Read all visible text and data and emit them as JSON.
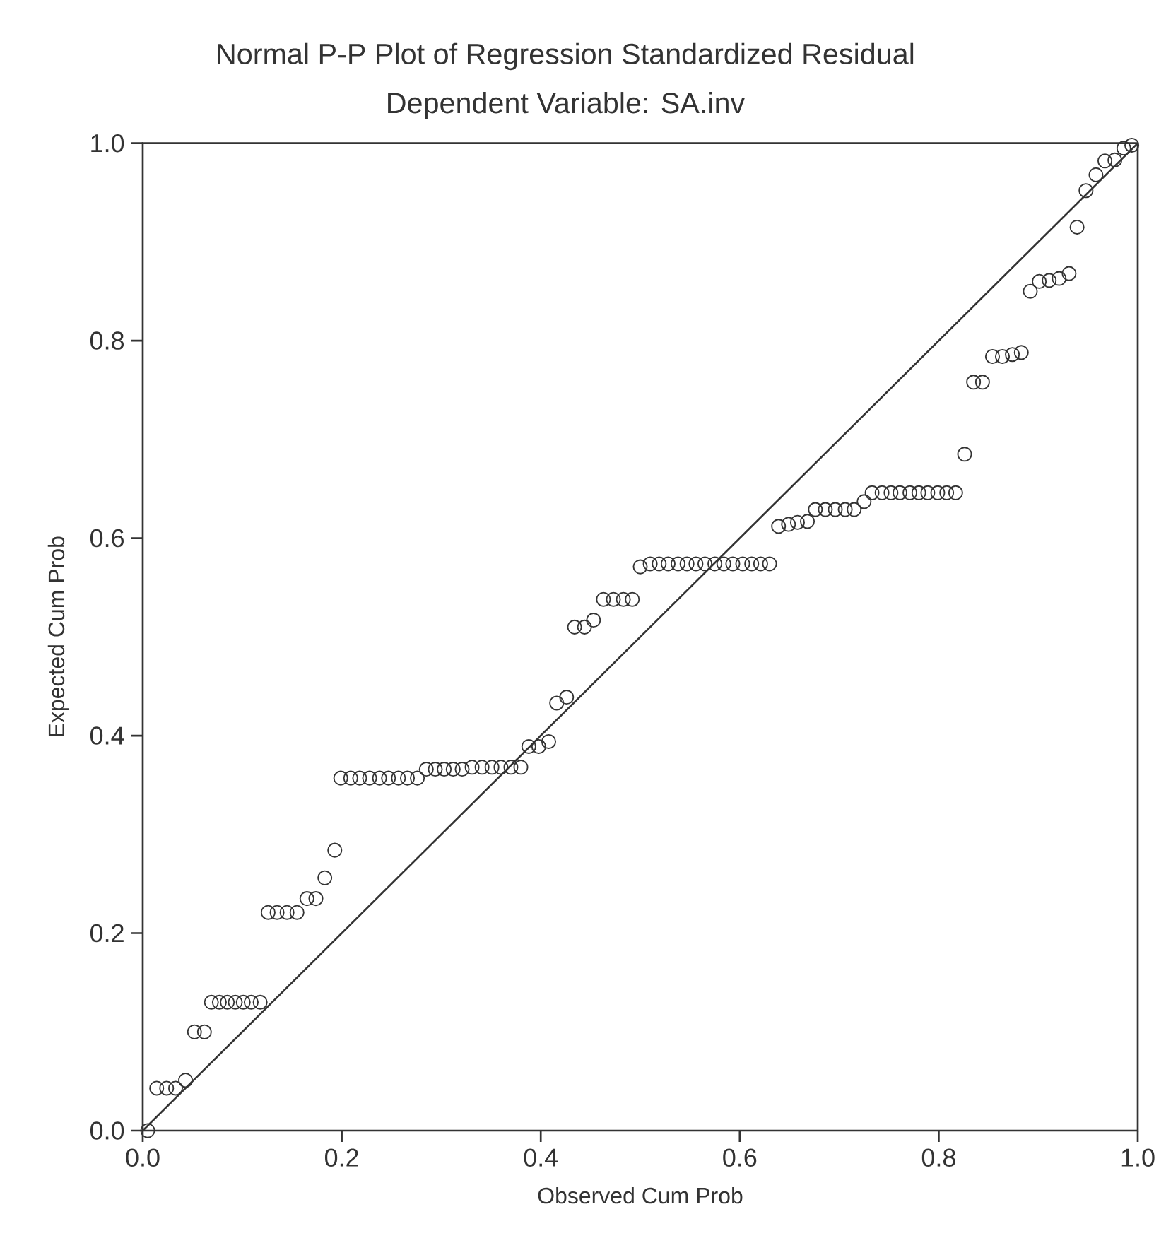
{
  "chart_data": {
    "type": "scatter",
    "title": "Normal P-P Plot of Regression Standardized Residual",
    "subtitle": "Dependent Variable: SA.inv",
    "xlabel": "Observed Cum Prob",
    "ylabel": "Expected Cum Prob",
    "xlim": [
      0,
      1
    ],
    "ylim": [
      0,
      1
    ],
    "xticks": [
      {
        "value": 0,
        "label": "0.0"
      },
      {
        "value": 0.2,
        "label": "0.2"
      },
      {
        "value": 0.4,
        "label": "0.4"
      },
      {
        "value": 0.6,
        "label": "0.6"
      },
      {
        "value": 0.8,
        "label": "0.8"
      },
      {
        "value": 1,
        "label": "1.0"
      }
    ],
    "yticks": [
      {
        "value": 0,
        "label": "0.0"
      },
      {
        "value": 0.2,
        "label": "0.2"
      },
      {
        "value": 0.4,
        "label": "0.4"
      },
      {
        "value": 0.6,
        "label": "0.6"
      },
      {
        "value": 0.8,
        "label": "0.8"
      },
      {
        "value": 1,
        "label": "1.0"
      }
    ],
    "grid": false,
    "series": [
      {
        "marker": "circle",
        "color": "#333333",
        "x": [
          0.005,
          0.014,
          0.024,
          0.033,
          0.043,
          0.052,
          0.062,
          0.069,
          0.077,
          0.085,
          0.093,
          0.101,
          0.109,
          0.118,
          0.126,
          0.135,
          0.145,
          0.155,
          0.165,
          0.174,
          0.183,
          0.193,
          0.199,
          0.209,
          0.218,
          0.228,
          0.238,
          0.247,
          0.257,
          0.266,
          0.276,
          0.285,
          0.294,
          0.303,
          0.312,
          0.321,
          0.331,
          0.341,
          0.351,
          0.36,
          0.37,
          0.38,
          0.388,
          0.398,
          0.408,
          0.416,
          0.426,
          0.434,
          0.444,
          0.453,
          0.463,
          0.473,
          0.483,
          0.492,
          0.5,
          0.51,
          0.519,
          0.528,
          0.538,
          0.547,
          0.556,
          0.565,
          0.575,
          0.584,
          0.593,
          0.603,
          0.612,
          0.621,
          0.63,
          0.639,
          0.649,
          0.658,
          0.668,
          0.676,
          0.686,
          0.696,
          0.706,
          0.715,
          0.725,
          0.733,
          0.743,
          0.752,
          0.761,
          0.771,
          0.78,
          0.789,
          0.799,
          0.808,
          0.817,
          0.826,
          0.835,
          0.844,
          0.854,
          0.864,
          0.874,
          0.883,
          0.892,
          0.901,
          0.911,
          0.921,
          0.931,
          0.939,
          0.948,
          0.958,
          0.967,
          0.977,
          0.986,
          0.994
        ],
        "values": [
          0.0,
          0.043,
          0.043,
          0.043,
          0.051,
          0.1,
          0.1,
          0.13,
          0.13,
          0.13,
          0.13,
          0.13,
          0.13,
          0.13,
          0.221,
          0.221,
          0.221,
          0.221,
          0.235,
          0.235,
          0.256,
          0.284,
          0.357,
          0.357,
          0.357,
          0.357,
          0.357,
          0.357,
          0.357,
          0.357,
          0.357,
          0.366,
          0.366,
          0.366,
          0.366,
          0.366,
          0.368,
          0.368,
          0.368,
          0.368,
          0.368,
          0.368,
          0.389,
          0.389,
          0.394,
          0.433,
          0.439,
          0.51,
          0.51,
          0.517,
          0.538,
          0.538,
          0.538,
          0.538,
          0.571,
          0.574,
          0.574,
          0.574,
          0.574,
          0.574,
          0.574,
          0.574,
          0.574,
          0.574,
          0.574,
          0.574,
          0.574,
          0.574,
          0.574,
          0.612,
          0.614,
          0.616,
          0.617,
          0.629,
          0.629,
          0.629,
          0.629,
          0.629,
          0.637,
          0.646,
          0.646,
          0.646,
          0.646,
          0.646,
          0.646,
          0.646,
          0.646,
          0.646,
          0.646,
          0.685,
          0.758,
          0.758,
          0.784,
          0.784,
          0.786,
          0.788,
          0.85,
          0.86,
          0.861,
          0.863,
          0.868,
          0.915,
          0.952,
          0.968,
          0.982,
          0.983,
          0.995,
          0.998
        ]
      },
      {
        "type": "line",
        "marker": "none",
        "color": "#333333",
        "x": [
          0,
          1
        ],
        "values": [
          0,
          1
        ]
      }
    ]
  }
}
